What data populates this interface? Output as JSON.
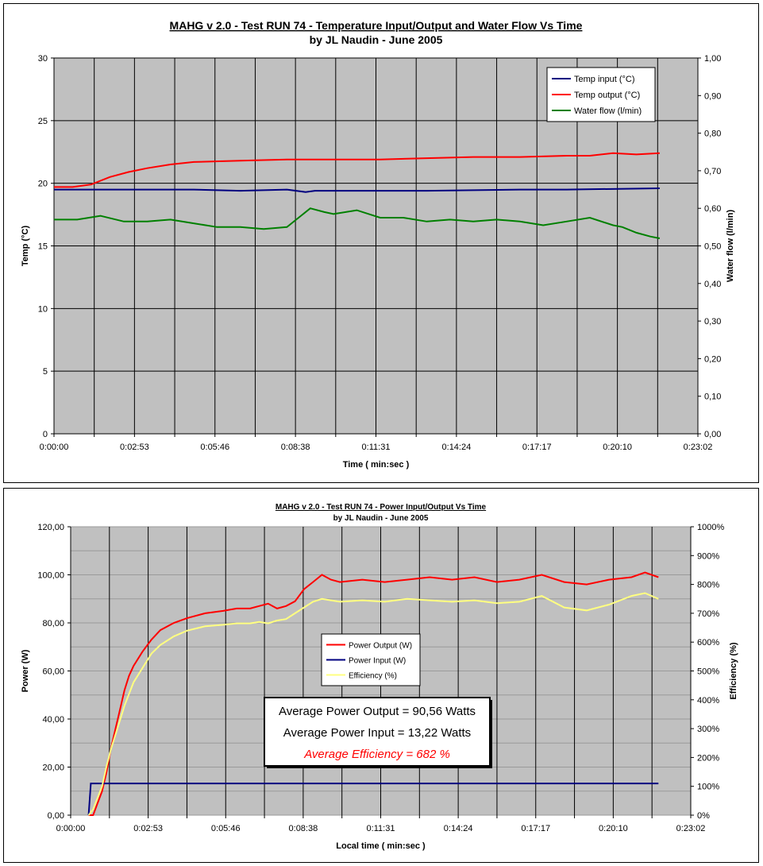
{
  "chart_data": [
    {
      "type": "line",
      "title": "MAHG v 2.0 - Test RUN 74 - Temperature Input/Output and Water Flow Vs Time",
      "subtitle": "by JL Naudin - June 2005",
      "xlabel": "Time  ( min:sec )",
      "ylabel": "Temp (°C)",
      "y2label": "Water flow   (l/min)",
      "x_ticks": [
        "0:00:00",
        "0:02:53",
        "0:05:46",
        "0:08:38",
        "0:11:31",
        "0:14:24",
        "0:17:17",
        "0:20:10",
        "0:23:02"
      ],
      "xlim": [
        0,
        1382
      ],
      "ylim": [
        0,
        30
      ],
      "y_ticks": [
        "0",
        "5",
        "10",
        "15",
        "20",
        "25",
        "30"
      ],
      "y2lim": [
        0,
        1
      ],
      "y2_ticks": [
        "0,00",
        "0,10",
        "0,20",
        "0,30",
        "0,40",
        "0,50",
        "0,60",
        "0,70",
        "0,80",
        "0,90",
        "1,00"
      ],
      "grid": true,
      "legend_position": "top-right",
      "series": [
        {
          "name": "Temp input (°C)",
          "axis": "left",
          "color": "#000080",
          "x": [
            0,
            150,
            300,
            400,
            500,
            540,
            560,
            650,
            800,
            1000,
            1100,
            1300
          ],
          "y": [
            19.5,
            19.5,
            19.5,
            19.4,
            19.5,
            19.3,
            19.4,
            19.4,
            19.4,
            19.5,
            19.5,
            19.6
          ]
        },
        {
          "name": "Temp output (°C)",
          "axis": "left",
          "color": "#ff0000",
          "x": [
            0,
            40,
            80,
            120,
            160,
            200,
            250,
            300,
            400,
            500,
            600,
            700,
            800,
            900,
            1000,
            1100,
            1150,
            1200,
            1250,
            1300
          ],
          "y": [
            19.7,
            19.7,
            19.9,
            20.5,
            20.9,
            21.2,
            21.5,
            21.7,
            21.8,
            21.9,
            21.9,
            21.9,
            22.0,
            22.1,
            22.1,
            22.2,
            22.2,
            22.4,
            22.3,
            22.4
          ]
        },
        {
          "name": "Water flow (l/min)",
          "axis": "right",
          "color": "#008000",
          "x": [
            0,
            50,
            100,
            150,
            200,
            250,
            300,
            350,
            400,
            450,
            500,
            550,
            580,
            600,
            650,
            700,
            750,
            800,
            850,
            900,
            950,
            1000,
            1050,
            1100,
            1150,
            1200,
            1220,
            1250,
            1280,
            1300
          ],
          "y": [
            0.57,
            0.57,
            0.58,
            0.565,
            0.565,
            0.57,
            0.56,
            0.55,
            0.55,
            0.545,
            0.55,
            0.6,
            0.59,
            0.585,
            0.595,
            0.575,
            0.575,
            0.565,
            0.57,
            0.565,
            0.57,
            0.565,
            0.555,
            0.565,
            0.575,
            0.555,
            0.55,
            0.535,
            0.525,
            0.52
          ]
        }
      ]
    },
    {
      "type": "line",
      "title": "MAHG v 2.0 - Test RUN 74 - Power Input/Output Vs Time",
      "subtitle": "by JL Naudin - June 2005",
      "xlabel": "Local time  ( min:sec )",
      "ylabel": "Power (W)",
      "y2label": "Efficiency (%)",
      "x_ticks": [
        "0:00:00",
        "0:02:53",
        "0:05:46",
        "0:08:38",
        "0:11:31",
        "0:14:24",
        "0:17:17",
        "0:20:10",
        "0:23:02"
      ],
      "xlim": [
        0,
        1382
      ],
      "ylim": [
        0,
        120
      ],
      "y_ticks": [
        "0,00",
        "20,00",
        "40,00",
        "60,00",
        "80,00",
        "100,00",
        "120,00"
      ],
      "y2lim": [
        0,
        1000
      ],
      "y2_ticks": [
        "0%",
        "100%",
        "200%",
        "300%",
        "400%",
        "500%",
        "600%",
        "700%",
        "800%",
        "900%",
        "1000%"
      ],
      "grid": true,
      "legend_position": "center",
      "series": [
        {
          "name": "Power Output (W)",
          "axis": "left",
          "color": "#ff0000",
          "x": [
            40,
            50,
            60,
            70,
            80,
            90,
            100,
            110,
            120,
            130,
            140,
            160,
            180,
            200,
            230,
            260,
            300,
            340,
            370,
            400,
            420,
            440,
            460,
            480,
            500,
            520,
            540,
            560,
            580,
            600,
            650,
            700,
            750,
            800,
            850,
            900,
            950,
            1000,
            1050,
            1100,
            1150,
            1200,
            1250,
            1280,
            1310
          ],
          "y": [
            0,
            0,
            5,
            10,
            18,
            28,
            36,
            44,
            52,
            58,
            62,
            68,
            73,
            77,
            80,
            82,
            84,
            85,
            86,
            86,
            87,
            88,
            86,
            87,
            89,
            94,
            97,
            100,
            98,
            97,
            98,
            97,
            98,
            99,
            98,
            99,
            97,
            98,
            100,
            97,
            96,
            98,
            99,
            101,
            99
          ]
        },
        {
          "name": "Power Input (W)",
          "axis": "left",
          "color": "#000080",
          "x": [
            40,
            45,
            50,
            80,
            300,
            600,
            900,
            1200,
            1310
          ],
          "y": [
            0,
            13.2,
            13.2,
            13.2,
            13.2,
            13.2,
            13.2,
            13.2,
            13.2
          ]
        },
        {
          "name": "Efficiency (%)",
          "axis": "right",
          "color": "#ffff80",
          "x": [
            40,
            50,
            60,
            70,
            80,
            90,
            100,
            110,
            120,
            130,
            140,
            160,
            180,
            200,
            230,
            260,
            300,
            340,
            370,
            400,
            420,
            440,
            460,
            480,
            500,
            520,
            540,
            560,
            580,
            600,
            650,
            700,
            750,
            800,
            850,
            900,
            950,
            1000,
            1050,
            1100,
            1150,
            1200,
            1250,
            1280,
            1310
          ],
          "y": [
            0,
            20,
            60,
            100,
            170,
            230,
            280,
            330,
            380,
            420,
            460,
            510,
            560,
            590,
            620,
            640,
            655,
            660,
            665,
            665,
            670,
            665,
            675,
            680,
            700,
            720,
            740,
            750,
            745,
            740,
            745,
            740,
            750,
            745,
            740,
            745,
            735,
            740,
            760,
            720,
            710,
            730,
            760,
            770,
            750
          ]
        }
      ]
    }
  ],
  "annotation": {
    "line1": "Average Power Output = 90,56 Watts",
    "line2": "Average Power Input = 13,22 Watts",
    "line3": "Average Efficiency =  682 %"
  }
}
